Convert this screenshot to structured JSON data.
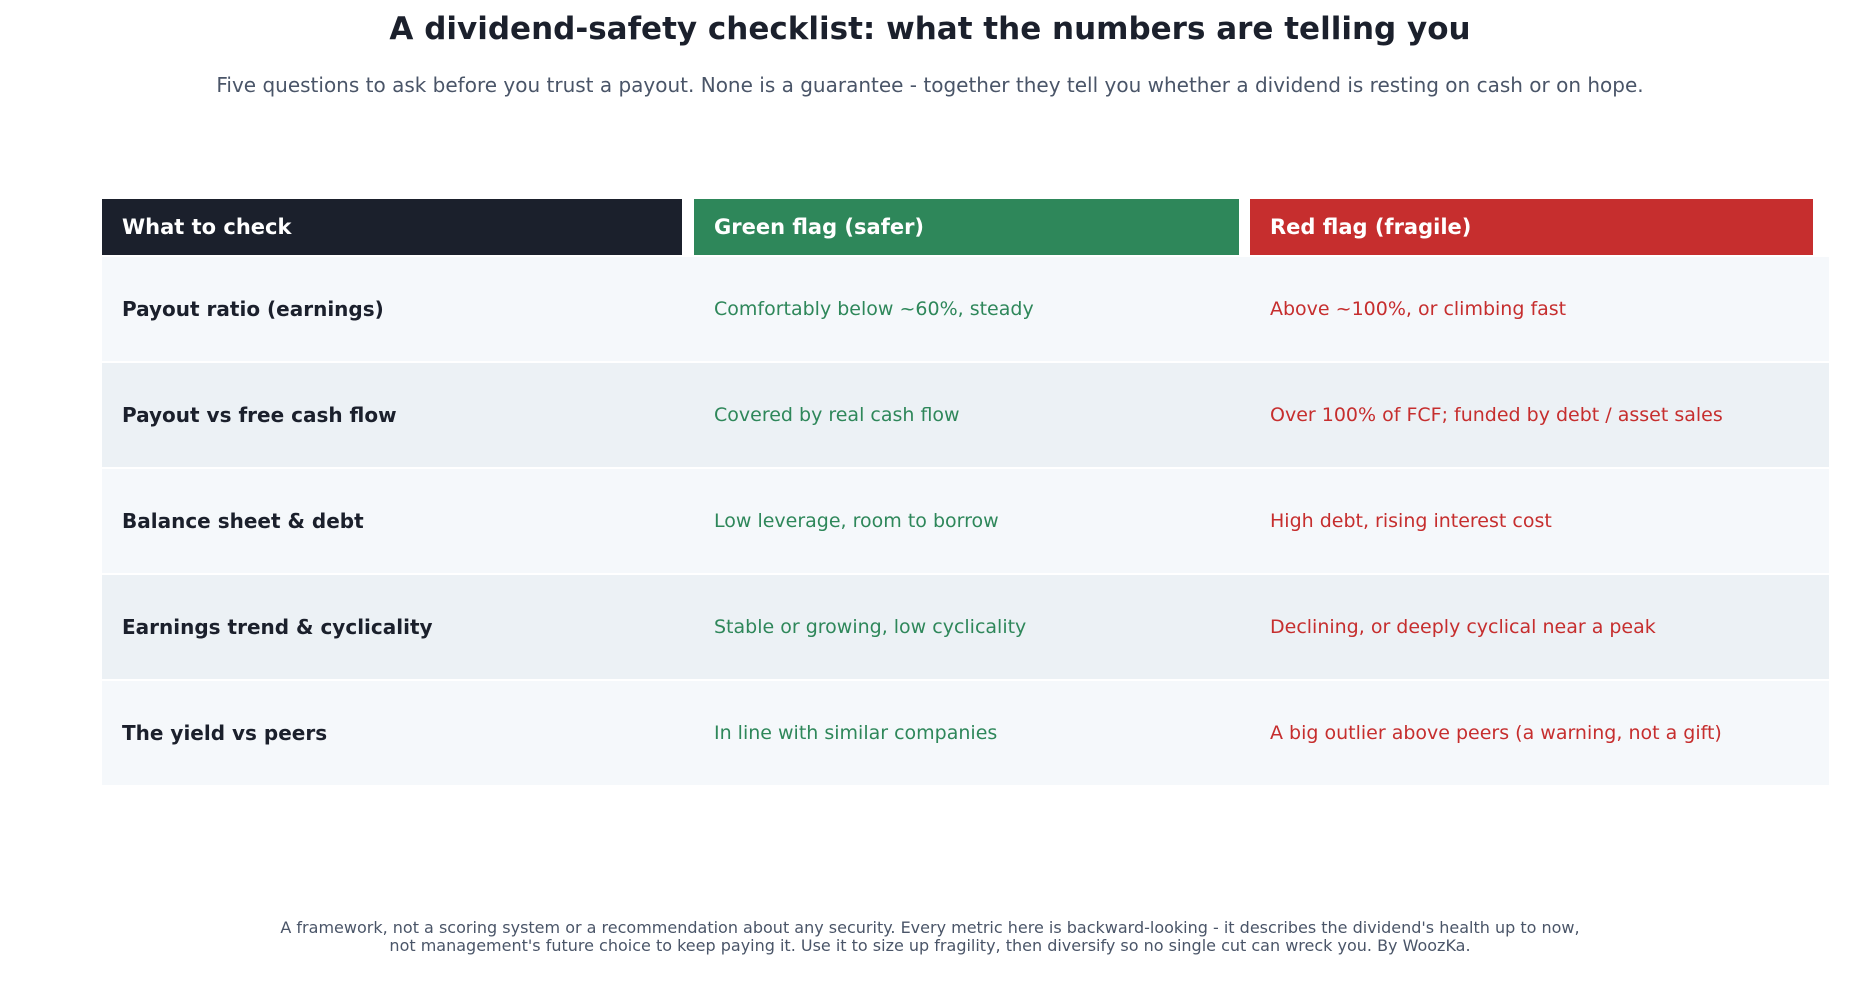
{
  "title": "A dividend-safety checklist: what the numbers are telling you",
  "subtitle": "Five questions to ask before you trust a payout. None is a guarantee - together they tell you whether a dividend is resting on cash or on hope.",
  "colors": {
    "header_dark": "#1b202c",
    "green": "#2e875a",
    "red": "#c62e2e",
    "row_light": "#f5f8fb",
    "row_shaded": "#ecf1f5"
  },
  "table": {
    "headers": [
      "What to check",
      "Green flag (safer)",
      "Red flag (fragile)"
    ],
    "rows": [
      {
        "check": "Payout ratio (earnings)",
        "green": "Comfortably below ~60%, steady",
        "red": "Above ~100%, or climbing fast"
      },
      {
        "check": "Payout vs free cash flow",
        "green": "Covered by real cash flow",
        "red": "Over 100% of FCF; funded by debt / asset sales"
      },
      {
        "check": "Balance sheet & debt",
        "green": "Low leverage, room to borrow",
        "red": "High debt, rising interest cost"
      },
      {
        "check": "Earnings trend & cyclicality",
        "green": "Stable or growing, low cyclicality",
        "red": "Declining, or deeply cyclical near a peak"
      },
      {
        "check": "The yield vs peers",
        "green": "In line with similar companies",
        "red": "A big outlier above peers (a warning, not a gift)"
      }
    ]
  },
  "footer": {
    "line1": "A framework, not a scoring system or a recommendation about any security. Every metric here is backward-looking - it describes the dividend's health up to now,",
    "line2": "not management's future choice to keep paying it. Use it to size up fragility, then diversify so no single cut can wreck you. By WoozKa."
  }
}
